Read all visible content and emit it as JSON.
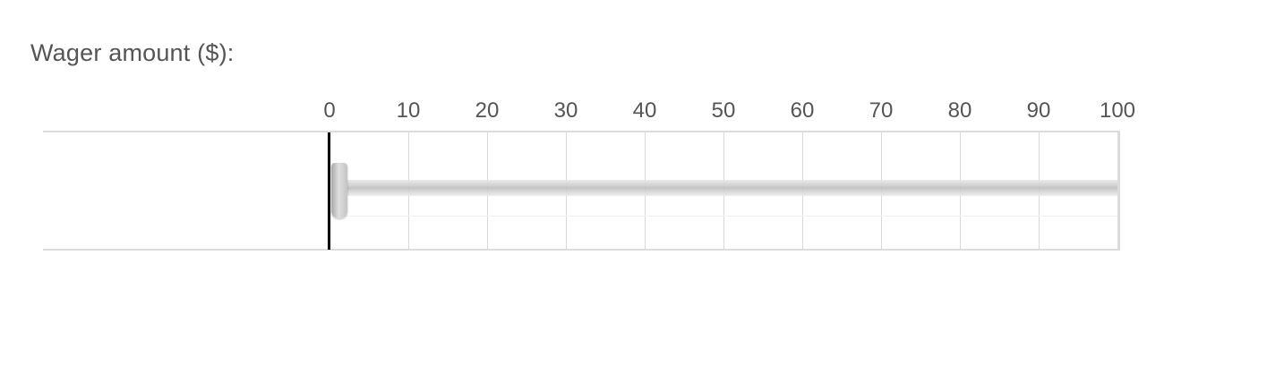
{
  "question": {
    "text": "Wager amount ($):"
  },
  "slider": {
    "min": 0,
    "max": 100,
    "value": 0,
    "tick_labels": [
      "0",
      "10",
      "20",
      "30",
      "40",
      "50",
      "60",
      "70",
      "80",
      "90",
      "100"
    ]
  }
}
